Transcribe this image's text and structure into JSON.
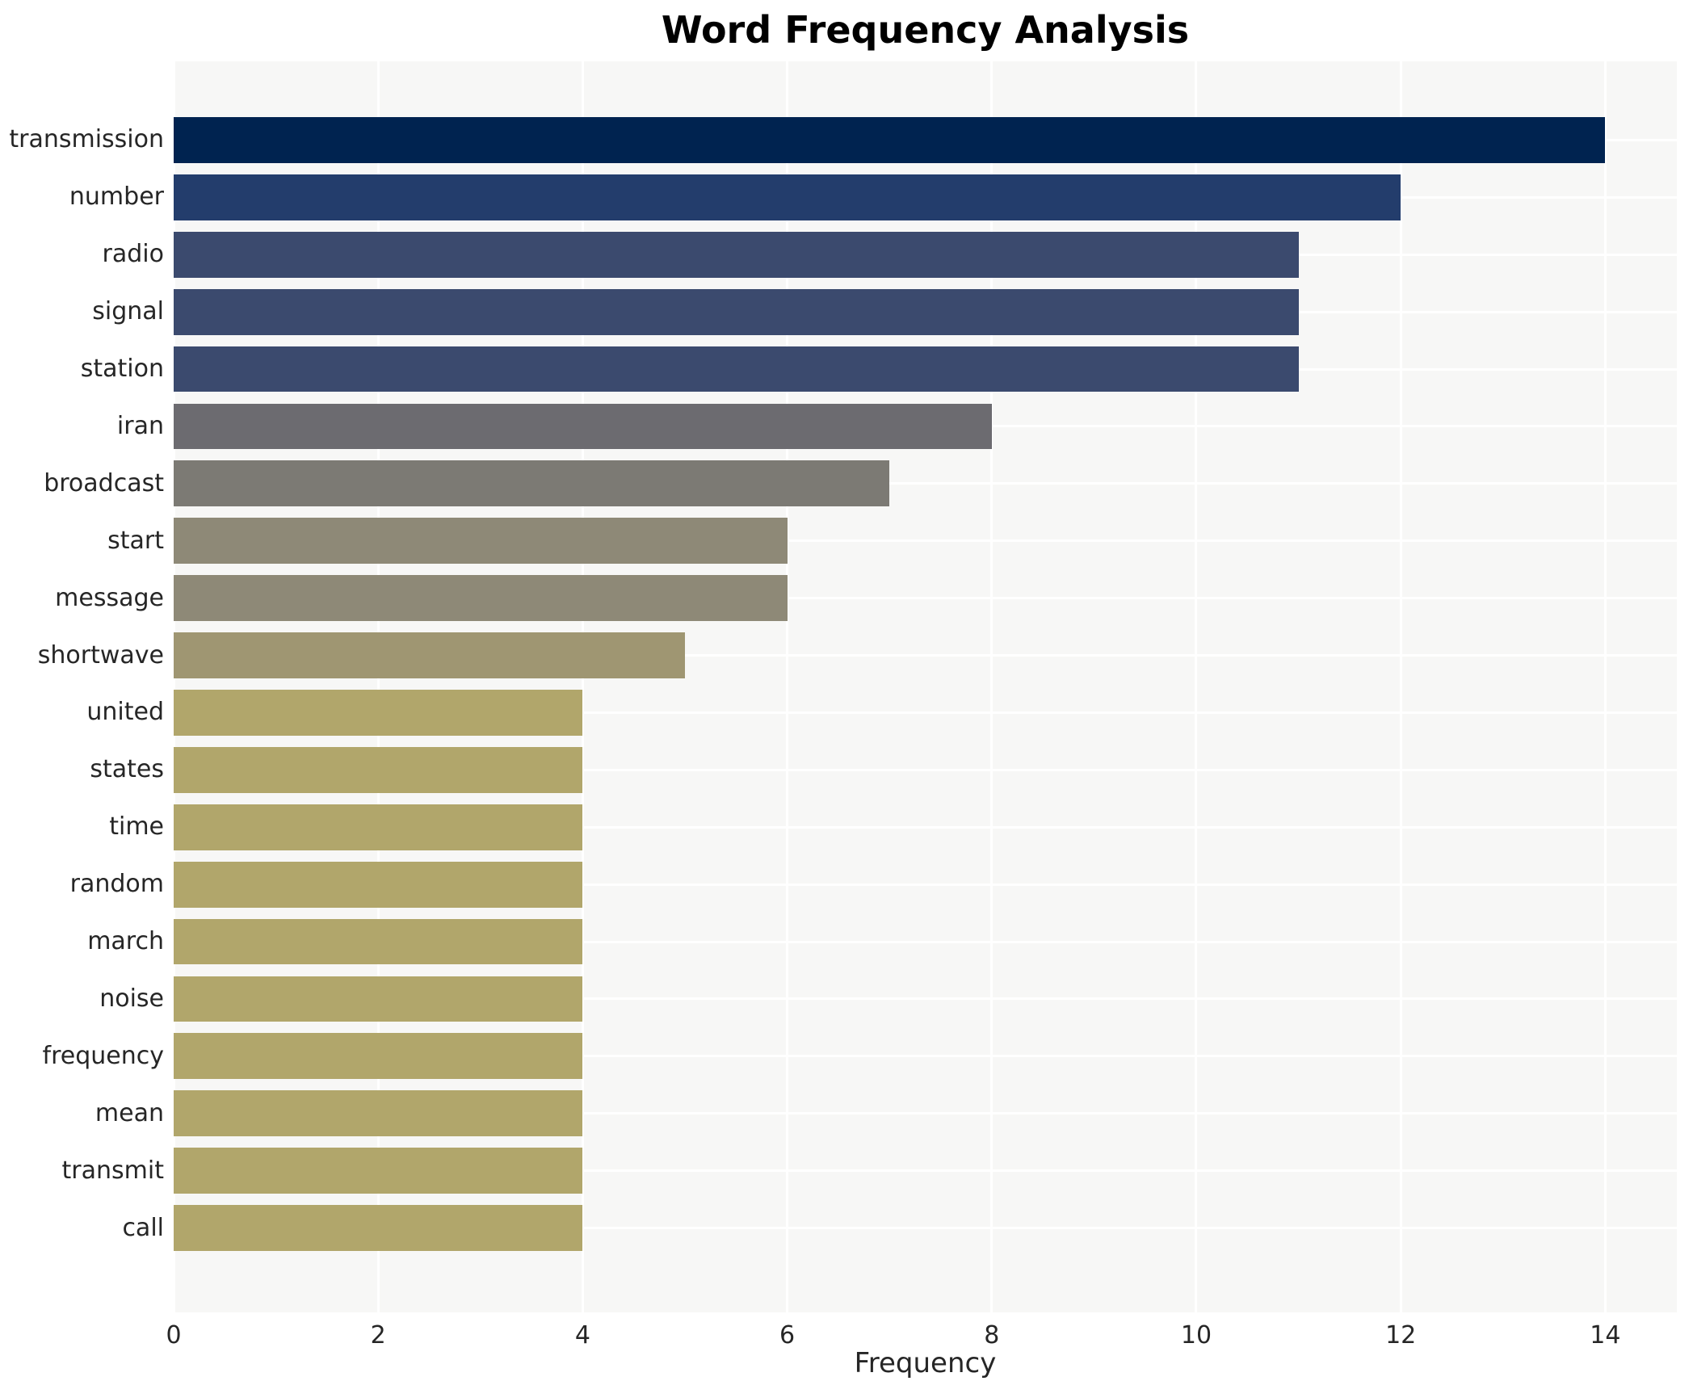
{
  "title": "Word Frequency Analysis",
  "x_axis": {
    "label": "Frequency",
    "ticks": [
      "0",
      "2",
      "4",
      "6",
      "8",
      "10",
      "12",
      "14"
    ]
  },
  "chart_data": {
    "type": "bar",
    "orientation": "horizontal",
    "title": "Word Frequency Analysis",
    "xlabel": "Frequency",
    "ylabel": "",
    "categories": [
      "transmission",
      "number",
      "radio",
      "signal",
      "station",
      "iran",
      "broadcast",
      "start",
      "message",
      "shortwave",
      "united",
      "states",
      "time",
      "random",
      "march",
      "noise",
      "frequency",
      "mean",
      "transmit",
      "call"
    ],
    "values": [
      14,
      12,
      11,
      11,
      11,
      8,
      7,
      6,
      6,
      5,
      4,
      4,
      4,
      4,
      4,
      4,
      4,
      4,
      4,
      4
    ],
    "bar_colors": [
      "#002350",
      "#233d6c",
      "#3b4a6e",
      "#3b4a6e",
      "#3b4a6e",
      "#6c6b70",
      "#7c7a74",
      "#8e8977",
      "#8e8977",
      "#9f9672",
      "#b1a66b",
      "#b1a66b",
      "#b1a66b",
      "#b1a66b",
      "#b1a66b",
      "#b1a66b",
      "#b1a66b",
      "#b1a66b",
      "#b1a66b",
      "#b1a66b"
    ],
    "xticks": [
      0,
      2,
      4,
      6,
      8,
      10,
      12,
      14
    ],
    "xlim": [
      0,
      14.7
    ],
    "bar_height_fraction": 0.8,
    "grid": true,
    "legend_position": "none",
    "colors": {
      "figure_bg": "#ffffff",
      "plot_bg": "#f7f7f6",
      "grid": "#ffffff",
      "text": "#262626",
      "title": "#000000"
    }
  }
}
